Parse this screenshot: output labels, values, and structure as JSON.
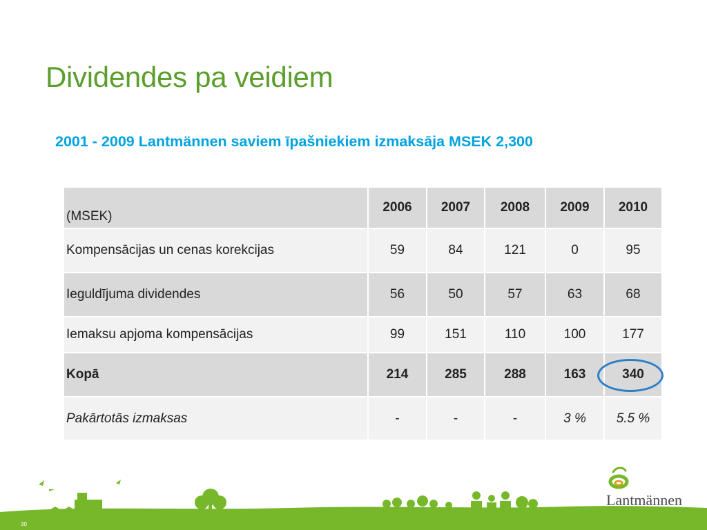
{
  "slide": {
    "title": "Dividendes pa veidiem",
    "subtitle": "2001 - 2009 Lantmännen saviem īpašniekiem izmaksāja MSEK 2,300",
    "page_number": "30"
  },
  "table": {
    "header": [
      "(MSEK)",
      "2006",
      "2007",
      "2008",
      "2009",
      "2010"
    ],
    "rows": [
      {
        "label": "Kompensācijas un cenas korekcijas",
        "values": [
          "59",
          "84",
          "121",
          "0",
          "95"
        ]
      },
      {
        "label": "Ieguldījuma dividendes",
        "values": [
          "56",
          "50",
          "57",
          "63",
          "68"
        ]
      },
      {
        "label": "Iemaksu apjoma kompensācijas",
        "values": [
          "99",
          "151",
          "110",
          "100",
          "177"
        ]
      },
      {
        "label": "Kopā",
        "values": [
          "214",
          "285",
          "288",
          "163",
          "340"
        ]
      },
      {
        "label": "Pakārtotās izmaksas",
        "values": [
          "-",
          "-",
          "-",
          "3 %",
          "5.5 %"
        ]
      }
    ],
    "highlighted_cell": {
      "row": "Kopā",
      "column": "2010",
      "color": "#2a7fc8"
    }
  },
  "logo": {
    "name": "Lantmännen"
  },
  "colors": {
    "title": "#5a9e2b",
    "subtitle": "#00a3e0",
    "footer_green": "#76b82a",
    "header_bg": "#d9d9d9",
    "light_row_bg": "#f2f2f2"
  }
}
